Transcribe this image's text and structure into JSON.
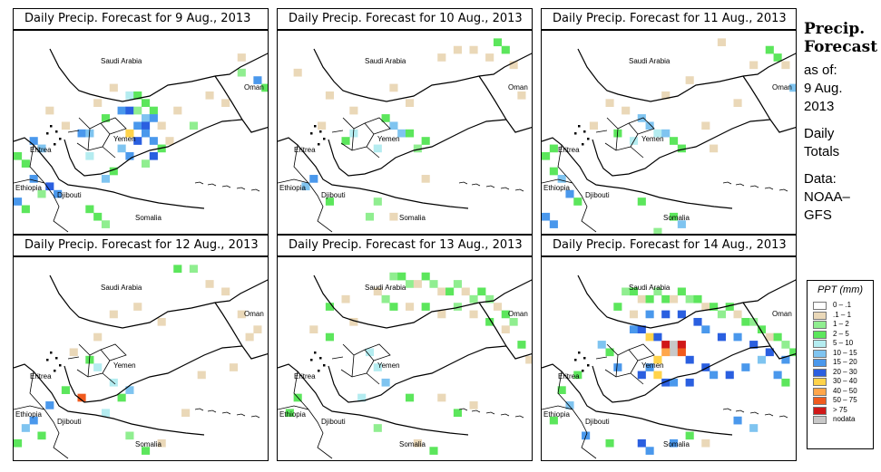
{
  "panels": [
    {
      "title": "Daily Precip. Forecast for  9 Aug., 2013",
      "date": "9 Aug."
    },
    {
      "title": "Daily Precip. Forecast for  10 Aug., 2013",
      "date": "10 Aug."
    },
    {
      "title": "Daily Precip. Forecast for  11 Aug., 2013",
      "date": "11 Aug."
    },
    {
      "title": "Daily Precip. Forecast for  12 Aug., 2013",
      "date": "12 Aug."
    },
    {
      "title": "Daily Precip. Forecast for  13 Aug., 2013",
      "date": "13 Aug."
    },
    {
      "title": "Daily Precip. Forecast for  14 Aug., 2013",
      "date": "14 Aug."
    }
  ],
  "map_labels": {
    "saudi": "Saudi Arabia",
    "oman": "Oman",
    "yemen": "Yemen",
    "eritrea": "Eritrea",
    "ethiopia": "Ethiopia",
    "djibouti": "Djibouti",
    "somalia": "Somalia"
  },
  "sidebar": {
    "title_line1": "Precip.",
    "title_line2": "Forecast",
    "asof_line1": "as of:",
    "asof_line2": "9 Aug.",
    "asof_line3": "2013",
    "totals_line1": "Daily",
    "totals_line2": "Totals",
    "data_line1": "Data:",
    "data_line2": "NOAA–",
    "data_line3": "GFS"
  },
  "legend": {
    "title": "PPT (mm)",
    "items": [
      {
        "label": "0 – .1",
        "color": "#ffffff"
      },
      {
        "label": ".1 – 1",
        "color": "#ead8b8"
      },
      {
        "label": "1 – 2",
        "color": "#90ee90"
      },
      {
        "label": "2 – 5",
        "color": "#5ce65c"
      },
      {
        "label": "5 – 10",
        "color": "#b4ecf0"
      },
      {
        "label": "10 – 15",
        "color": "#7fc4f0"
      },
      {
        "label": "15 – 20",
        "color": "#4a98ec"
      },
      {
        "label": "20 – 30",
        "color": "#2a5fe0"
      },
      {
        "label": "30 – 40",
        "color": "#ffd34a"
      },
      {
        "label": "40 – 50",
        "color": "#ffa64a"
      },
      {
        "label": "50 – 75",
        "color": "#f05a1e"
      },
      {
        "label": "> 75",
        "color": "#d01818"
      },
      {
        "label": "nodata",
        "color": "#c8c8c8"
      }
    ]
  },
  "map_data": {
    "grid_cols": 32,
    "grid_rows": 27,
    "days": [
      {
        "cells": "14,8,4;15,8,3;16,9,3;17,10,3;13,10,6;14,10,7;15,10,2;16,11,5;17,11,6;15,12,6;16,12,7;14,13,8;16,13,6;15,14,7;17,14,6;13,15,5;18,15,3;14,16,6;17,16,7;8,13,6;9,13,5;2,14,6;3,15,5;0,16,3;1,17,3;2,19,6;4,20,7;5,21,6;0,22,6;1,23,3;10,24,3;11,25,2;9,23,3;28,5,2;30,6,6;31,7,3;28,3,1;24,8,1;26,9,1;20,10,1;22,12,2;18,12,1;19,14,1;10,9,1;12,7,1;6,12,1;4,10,1;16,17,2;12,18,3;11,11,3;9,16,4;11,19,5;3,21,2"
      },
      {
        "cells": "13,11,3;14,12,5;15,13,5;16,13,3;17,15,2;18,14,3;12,15,4;9,13,4;8,14,3;4,19,6;3,20,5;6,22,3;12,22,2;11,24,2;20,3,1;22,2,1;24,2,1;26,3,1;27,1,3;28,2,3;29,4,1;30,8,1;16,9,1;14,7,1;9,10,1;6,8,1;5,12,1;2,5,1;18,19,1;14,24,1"
      },
      {
        "cells": "12,11,5;13,12,5;14,13,4;15,13,5;16,14,3;17,15,3;11,14,4;9,13,3;1,15,3;0,16,3;1,18,3;2,19,5;3,21,6;4,22,3;0,24,6;1,25,6;12,22,3;16,24,3;17,25,5;14,26,2;28,2,3;29,3,3;30,4,1;31,7,5;26,4,1;22,1,1;18,6,1;15,8,1;10,10,1;8,9,1;6,12,1;20,12,1;21,15,1;24,9,1"
      },
      {
        "cells": "9,13,3;10,14,4;12,16,4;13,18,3;14,17,5;11,20,4;8,18,10;6,17,3;4,19,6;2,21,6;1,22,5;0,24,3;3,23,3;14,23,2;16,25,3;18,24,1;20,1,3;22,1,2;24,3,1;26,4,1;28,7,1;29,10,1;30,9,1;18,8,1;15,6,1;12,7,1;10,10,1;7,12,1;23,15,1;27,14,1;21,20,1"
      },
      {
        "cells": "14,2,2;15,2,3;16,3,2;17,3,1;18,2,3;19,3,2;20,4,1;21,4,3;22,3,2;23,4,1;24,5,2;25,4,3;26,5,2;27,6,1;28,7,3;29,8,2;12,4,1;13,5,2;14,6,3;16,6,1;18,6,3;20,7,1;22,6,2;24,7,1;26,8,3;28,9,1;8,5,1;6,6,3;9,8,1;4,9,1;6,10,3;11,12,4;12,14,4;13,16,5;10,18,4;2,18,3;1,20,3;16,18,3;20,18,1;22,20,3;24,19,1;12,22,2;17,24,1;19,25,3;30,11,3;31,13,1"
      },
      {
        "cells": "10,4,2;11,4,3;12,5,1;13,5,3;14,4,2;15,5,3;16,5,1;17,4,3;18,5,2;19,5,3;20,6,1;21,6,3;22,7,2;23,6,3;24,7,1;25,8,3;26,8,2;27,9,3;28,10,1;29,10,3;30,11,2;31,12,3;9,6,3;11,7,1;13,7,6;15,7,7;17,7,7;19,8,7;20,9,6;22,10,7;24,10,6;26,11,7;28,12,7;30,13,6;11,9,6;12,9,7;13,10,8;14,10,7;15,11,11;16,11,12;17,11,11;16,12,12;17,12,10;15,12,9;14,13,8;18,13,7;13,14,6;12,15,7;14,15,8;15,16,7;16,16,6;18,16,7;20,14,7;21,15,6;23,15,7;25,14,6;27,13,5;29,15,6;30,16,3;9,14,6;8,12,3;7,11,5;4,15,3;2,17,3;3,19,5;1,21,3;5,23,6;8,24,3;12,24,7;13,25,6;16,24,6;18,23,3;20,24,1;24,21,6;26,22,5"
      }
    ]
  }
}
